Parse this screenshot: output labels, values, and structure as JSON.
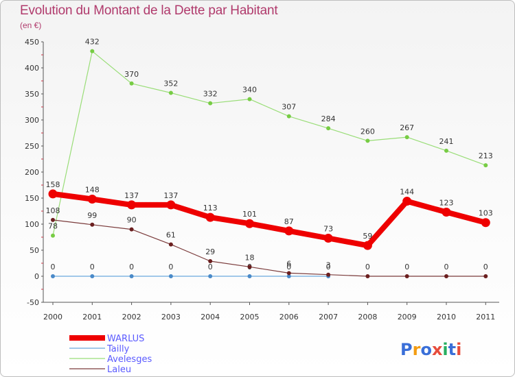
{
  "title": "Evolution du Montant de la Dette par Habitant",
  "subtitle": "(en €)",
  "logo": {
    "text": "Proxiti"
  },
  "chart_data": {
    "type": "line",
    "title": "Evolution du Montant de la Dette par Habitant",
    "subtitle": "(en €)",
    "xlabel": "",
    "ylabel": "",
    "ylim": [
      -50,
      450
    ],
    "yticks": [
      -50,
      0,
      50,
      100,
      150,
      200,
      250,
      300,
      350,
      400,
      450
    ],
    "grid": false,
    "legend_position": "bottom-left",
    "categories": [
      "2000",
      "2001",
      "2002",
      "2003",
      "2004",
      "2005",
      "2006",
      "2007",
      "2008",
      "2009",
      "2010",
      "2011"
    ],
    "series": [
      {
        "name": "WARLUS",
        "color": "#ff0000",
        "values": [
          158,
          148,
          137,
          137,
          113,
          101,
          87,
          73,
          59,
          144,
          123,
          103
        ]
      },
      {
        "name": "Tailly",
        "color": "#5b9bd5",
        "values": [
          0,
          0,
          0,
          0,
          0,
          0,
          0,
          0,
          null,
          null,
          null,
          null
        ]
      },
      {
        "name": "Avelesges",
        "color": "#99dd77",
        "values": [
          78,
          432,
          370,
          352,
          332,
          340,
          307,
          284,
          260,
          267,
          241,
          213
        ]
      },
      {
        "name": "Laleu",
        "color": "#7a2e2e",
        "values": [
          108,
          99,
          90,
          61,
          29,
          18,
          6,
          3,
          0,
          0,
          0,
          0
        ]
      }
    ]
  }
}
